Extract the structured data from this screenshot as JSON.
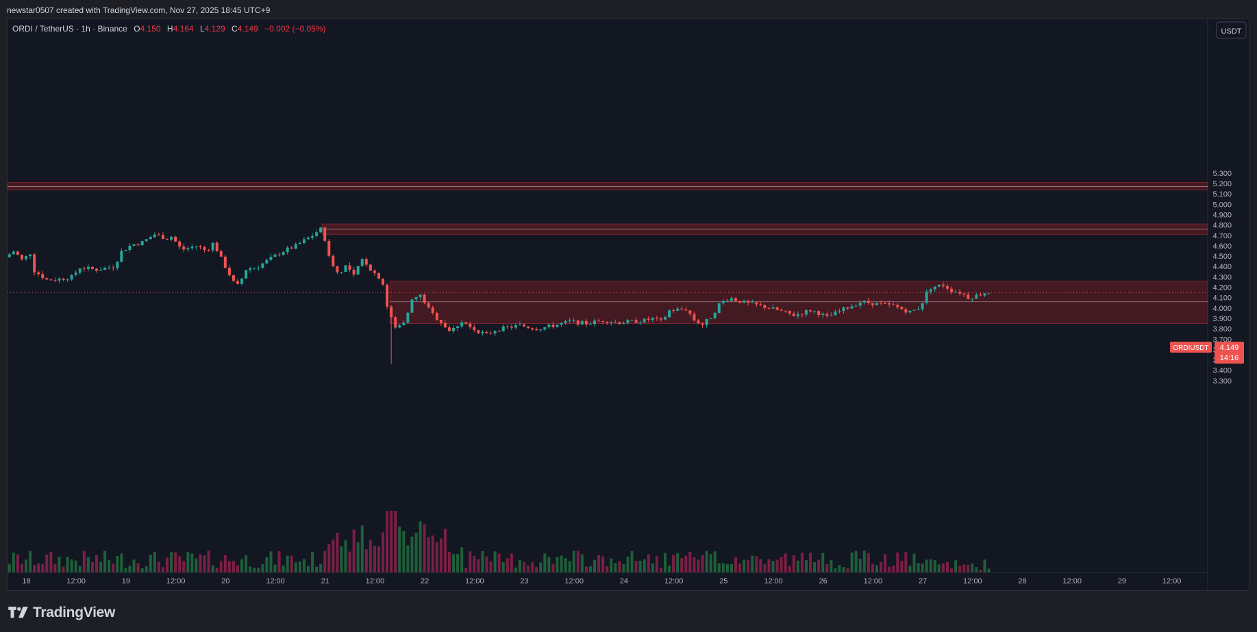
{
  "header": {
    "credit": "newstar0507 created with TradingView.com, Nov 27, 2025 18:45 UTC+9"
  },
  "legend": {
    "symbol": "ORDI / TetherUS · 1h · Binance",
    "o_label": "O",
    "o_value": "4.150",
    "h_label": "H",
    "h_value": "4.164",
    "l_label": "L",
    "l_value": "4.129",
    "c_label": "C",
    "c_value": "4.149",
    "change": "−0.002 (−0.05%)"
  },
  "currency_button": "USDT",
  "price_tag": {
    "symbol": "ORDIUSDT",
    "price": "4.149",
    "countdown": "14:16"
  },
  "footer": {
    "brand": "TradingView"
  },
  "colors": {
    "background": "#131722",
    "up": "#26a69a",
    "down": "#ef5350",
    "zone_fill": "#4c1a22",
    "zone_border": "#7a2530",
    "axis_text": "#b2b5be"
  },
  "chart_data": {
    "type": "candlestick",
    "symbol": "ORDIUSDT",
    "timeframe": "1h",
    "ylim": [
      3.25,
      5.38
    ],
    "y_ticks": [
      "5.300",
      "5.200",
      "5.100",
      "5.000",
      "4.900",
      "4.800",
      "4.700",
      "4.600",
      "4.500",
      "4.400",
      "4.300",
      "4.200",
      "4.100",
      "4.000",
      "3.900",
      "3.800",
      "3.700",
      "3.600",
      "3.500",
      "3.400",
      "3.300"
    ],
    "x_ticks": [
      "18",
      "12:00",
      "19",
      "12:00",
      "20",
      "12:00",
      "21",
      "12:00",
      "22",
      "12:00",
      "23",
      "12:00",
      "24",
      "12:00",
      "25",
      "12:00",
      "26",
      "12:00",
      "27",
      "12:00",
      "28",
      "12:00",
      "29",
      "12:00"
    ],
    "current_price": 4.149,
    "zones": [
      {
        "low": 5.14,
        "high": 5.21,
        "mid": 5.17,
        "from_day": 17.8
      },
      {
        "low": 4.71,
        "high": 4.81,
        "mid": 4.76,
        "from_day": 20.97
      },
      {
        "low": 3.85,
        "high": 4.26,
        "mid": 4.06,
        "from_day": 21.65
      }
    ],
    "price_path": [
      {
        "t": 17.83,
        "p": 4.49
      },
      {
        "t": 17.92,
        "p": 4.55
      },
      {
        "t": 18.0,
        "p": 4.46
      },
      {
        "t": 18.08,
        "p": 4.53
      },
      {
        "t": 18.12,
        "p": 4.36
      },
      {
        "t": 18.25,
        "p": 4.27
      },
      {
        "t": 18.38,
        "p": 4.28
      },
      {
        "t": 18.5,
        "p": 4.3
      },
      {
        "t": 18.58,
        "p": 4.39
      },
      {
        "t": 18.75,
        "p": 4.37
      },
      {
        "t": 18.92,
        "p": 4.4
      },
      {
        "t": 19.0,
        "p": 4.55
      },
      {
        "t": 19.1,
        "p": 4.61
      },
      {
        "t": 19.2,
        "p": 4.63
      },
      {
        "t": 19.33,
        "p": 4.71
      },
      {
        "t": 19.45,
        "p": 4.67
      },
      {
        "t": 19.5,
        "p": 4.69
      },
      {
        "t": 19.6,
        "p": 4.56
      },
      {
        "t": 19.75,
        "p": 4.6
      },
      {
        "t": 19.85,
        "p": 4.55
      },
      {
        "t": 19.92,
        "p": 4.63
      },
      {
        "t": 20.0,
        "p": 4.47
      },
      {
        "t": 20.12,
        "p": 4.25
      },
      {
        "t": 20.17,
        "p": 4.21
      },
      {
        "t": 20.25,
        "p": 4.38
      },
      {
        "t": 20.35,
        "p": 4.39
      },
      {
        "t": 20.5,
        "p": 4.48
      },
      {
        "t": 20.6,
        "p": 4.54
      },
      {
        "t": 20.75,
        "p": 4.6
      },
      {
        "t": 20.83,
        "p": 4.65
      },
      {
        "t": 20.95,
        "p": 4.72
      },
      {
        "t": 20.98,
        "p": 4.79
      },
      {
        "t": 21.03,
        "p": 4.7
      },
      {
        "t": 21.08,
        "p": 4.49
      },
      {
        "t": 21.17,
        "p": 4.33
      },
      {
        "t": 21.25,
        "p": 4.41
      },
      {
        "t": 21.33,
        "p": 4.31
      },
      {
        "t": 21.42,
        "p": 4.48
      },
      {
        "t": 21.5,
        "p": 4.37
      },
      {
        "t": 21.58,
        "p": 4.3
      },
      {
        "t": 21.62,
        "p": 4.24
      },
      {
        "t": 21.67,
        "p": 3.98
      },
      {
        "t": 21.75,
        "p": 3.8
      },
      {
        "t": 21.83,
        "p": 3.87
      },
      {
        "t": 21.92,
        "p": 4.09
      },
      {
        "t": 22.0,
        "p": 4.12
      },
      {
        "t": 22.1,
        "p": 3.96
      },
      {
        "t": 22.2,
        "p": 3.87
      },
      {
        "t": 22.3,
        "p": 3.77
      },
      {
        "t": 22.42,
        "p": 3.88
      },
      {
        "t": 22.5,
        "p": 3.81
      },
      {
        "t": 22.67,
        "p": 3.74
      },
      {
        "t": 22.75,
        "p": 3.79
      },
      {
        "t": 22.92,
        "p": 3.82
      },
      {
        "t": 23.0,
        "p": 3.83
      },
      {
        "t": 23.17,
        "p": 3.8
      },
      {
        "t": 23.33,
        "p": 3.83
      },
      {
        "t": 23.5,
        "p": 3.87
      },
      {
        "t": 23.67,
        "p": 3.85
      },
      {
        "t": 23.83,
        "p": 3.88
      },
      {
        "t": 24.0,
        "p": 3.86
      },
      {
        "t": 24.25,
        "p": 3.88
      },
      {
        "t": 24.33,
        "p": 3.9
      },
      {
        "t": 24.42,
        "p": 3.87
      },
      {
        "t": 24.5,
        "p": 3.98
      },
      {
        "t": 24.67,
        "p": 3.99
      },
      {
        "t": 24.75,
        "p": 3.88
      },
      {
        "t": 24.83,
        "p": 3.84
      },
      {
        "t": 24.92,
        "p": 3.92
      },
      {
        "t": 25.0,
        "p": 4.04
      },
      {
        "t": 25.1,
        "p": 4.1
      },
      {
        "t": 25.25,
        "p": 4.05
      },
      {
        "t": 25.42,
        "p": 4.02
      },
      {
        "t": 25.58,
        "p": 3.98
      },
      {
        "t": 25.75,
        "p": 3.93
      },
      {
        "t": 25.92,
        "p": 3.98
      },
      {
        "t": 26.0,
        "p": 3.95
      },
      {
        "t": 26.08,
        "p": 3.91
      },
      {
        "t": 26.25,
        "p": 3.99
      },
      {
        "t": 26.42,
        "p": 4.06
      },
      {
        "t": 26.58,
        "p": 4.04
      },
      {
        "t": 26.75,
        "p": 4.02
      },
      {
        "t": 26.83,
        "p": 3.99
      },
      {
        "t": 26.92,
        "p": 3.96
      },
      {
        "t": 27.0,
        "p": 4.0
      },
      {
        "t": 27.05,
        "p": 4.08
      },
      {
        "t": 27.1,
        "p": 4.19
      },
      {
        "t": 27.17,
        "p": 4.21
      },
      {
        "t": 27.25,
        "p": 4.22
      },
      {
        "t": 27.33,
        "p": 4.17
      },
      {
        "t": 27.42,
        "p": 4.15
      },
      {
        "t": 27.5,
        "p": 4.1
      },
      {
        "t": 27.58,
        "p": 4.12
      },
      {
        "t": 27.67,
        "p": 4.15
      }
    ]
  }
}
